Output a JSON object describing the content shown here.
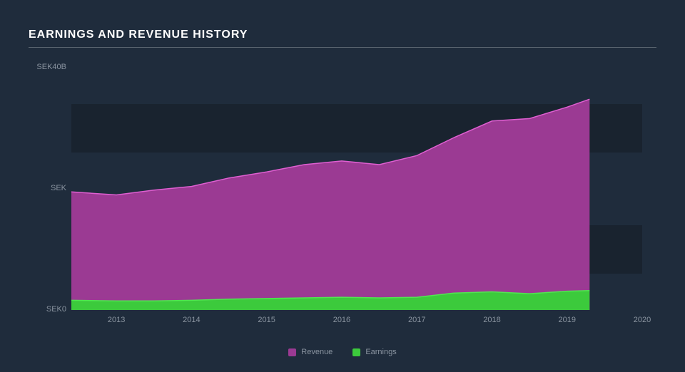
{
  "title": "EARNINGS AND REVENUE HISTORY",
  "chart": {
    "type": "area",
    "background_color": "#1f2c3c",
    "plot_band_color": "#19232f",
    "text_color": "#8a94a0",
    "title_color": "#ffffff",
    "title_fontsize": 16,
    "label_fontsize": 11,
    "x": {
      "ticks": [
        2013,
        2014,
        2015,
        2016,
        2017,
        2018,
        2019,
        2020
      ],
      "range": [
        2012.4,
        2020
      ]
    },
    "y": {
      "ticks": [
        "SEK0",
        "SEK",
        "SEK40B"
      ],
      "tick_values": [
        0,
        20,
        40
      ],
      "range": [
        0,
        40
      ],
      "bands": [
        [
          6,
          14
        ],
        [
          26,
          34
        ]
      ]
    },
    "series": [
      {
        "name": "Revenue",
        "color": "#9b3a93",
        "stroke": "#df5fd1",
        "stroke_width": 1.5,
        "x": [
          2012.4,
          2013,
          2013.5,
          2014,
          2014.5,
          2015,
          2015.5,
          2016,
          2016.5,
          2017,
          2017.5,
          2018,
          2018.5,
          2019,
          2019.3
        ],
        "y": [
          19.5,
          19.0,
          19.8,
          20.4,
          21.8,
          22.8,
          24.0,
          24.6,
          24.0,
          25.5,
          28.5,
          31.2,
          31.6,
          33.5,
          34.8
        ]
      },
      {
        "name": "Earnings",
        "color": "#3cca3c",
        "stroke": "#51e651",
        "stroke_width": 1.5,
        "x": [
          2012.4,
          2013,
          2013.5,
          2014,
          2014.5,
          2015,
          2015.5,
          2016,
          2016.5,
          2017,
          2017.5,
          2018,
          2018.5,
          2019,
          2019.3
        ],
        "y": [
          1.6,
          1.5,
          1.5,
          1.6,
          1.8,
          1.9,
          2.0,
          2.1,
          2.0,
          2.1,
          2.8,
          3.0,
          2.7,
          3.1,
          3.2
        ]
      }
    ],
    "legend": {
      "items": [
        {
          "label": "Revenue",
          "color": "#9b3a93"
        },
        {
          "label": "Earnings",
          "color": "#3cca3c"
        }
      ]
    }
  }
}
